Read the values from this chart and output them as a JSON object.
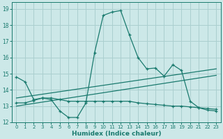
{
  "xlabel": "Humidex (Indice chaleur)",
  "bg_color": "#cce8e8",
  "line_color": "#1a7a6e",
  "grid_color": "#aacfcf",
  "xlim": [
    -0.5,
    23.5
  ],
  "ylim": [
    12,
    19.4
  ],
  "yticks": [
    12,
    13,
    14,
    15,
    16,
    17,
    18,
    19
  ],
  "xticks": [
    0,
    1,
    2,
    3,
    4,
    5,
    6,
    7,
    8,
    9,
    10,
    11,
    12,
    13,
    14,
    15,
    16,
    17,
    18,
    19,
    20,
    21,
    22,
    23
  ],
  "line1_x": [
    0,
    1,
    2,
    3,
    4,
    5,
    6,
    7,
    8,
    9,
    10,
    11,
    12,
    13,
    14,
    15,
    16,
    17,
    18,
    19,
    20,
    21,
    22,
    23
  ],
  "line1_y": [
    14.8,
    14.5,
    13.4,
    13.5,
    13.4,
    12.7,
    12.3,
    12.3,
    13.2,
    16.3,
    18.6,
    18.8,
    18.9,
    17.4,
    16.0,
    15.3,
    15.35,
    14.85,
    15.55,
    15.2,
    13.3,
    12.9,
    12.75,
    12.7
  ],
  "line2_x": [
    0,
    1,
    2,
    3,
    4,
    5,
    6,
    7,
    8,
    9,
    10,
    11,
    12,
    13,
    14,
    15,
    16,
    17,
    18,
    19,
    20,
    21,
    22,
    23
  ],
  "line2_y": [
    13.2,
    13.2,
    13.35,
    13.5,
    13.5,
    13.4,
    13.3,
    13.3,
    13.3,
    13.3,
    13.3,
    13.3,
    13.3,
    13.3,
    13.2,
    13.15,
    13.1,
    13.05,
    13.0,
    13.0,
    12.95,
    12.9,
    12.85,
    12.8
  ],
  "line3_x": [
    0,
    23
  ],
  "line3_y": [
    13.5,
    15.3
  ],
  "line4_x": [
    0,
    23
  ],
  "line4_y": [
    13.0,
    14.9
  ]
}
